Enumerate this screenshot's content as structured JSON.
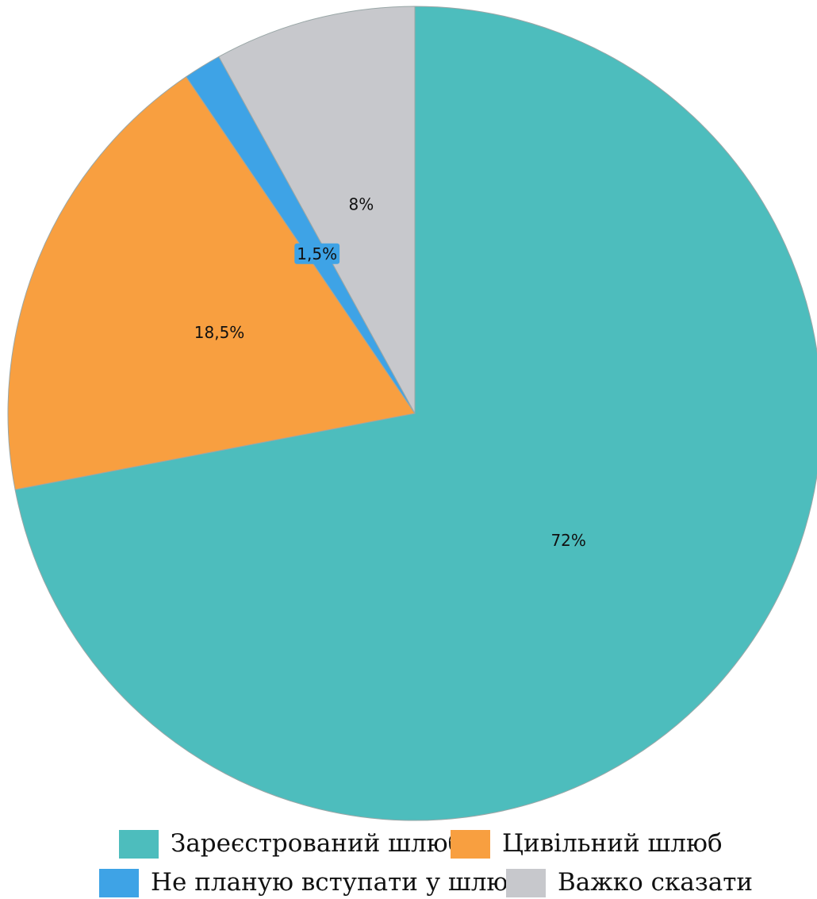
{
  "chart_data": {
    "type": "pie",
    "title": "",
    "start": "top",
    "direction": "clockwise",
    "legend_position": "bottom",
    "slices": [
      {
        "name": "Зареєстрований шлюб",
        "value": 72,
        "label": "72%",
        "color": "#4dbdbd"
      },
      {
        "name": "Цивільний шлюб",
        "value": 18.5,
        "label": "18,5%",
        "color": "#f89f40"
      },
      {
        "name": "Не планую вступати у шлюб",
        "value": 1.5,
        "label": "1,5%",
        "color": "#3ea3e6"
      },
      {
        "name": "Важко сказати",
        "value": 8,
        "label": "8%",
        "color": "#c7c8cc"
      }
    ]
  }
}
